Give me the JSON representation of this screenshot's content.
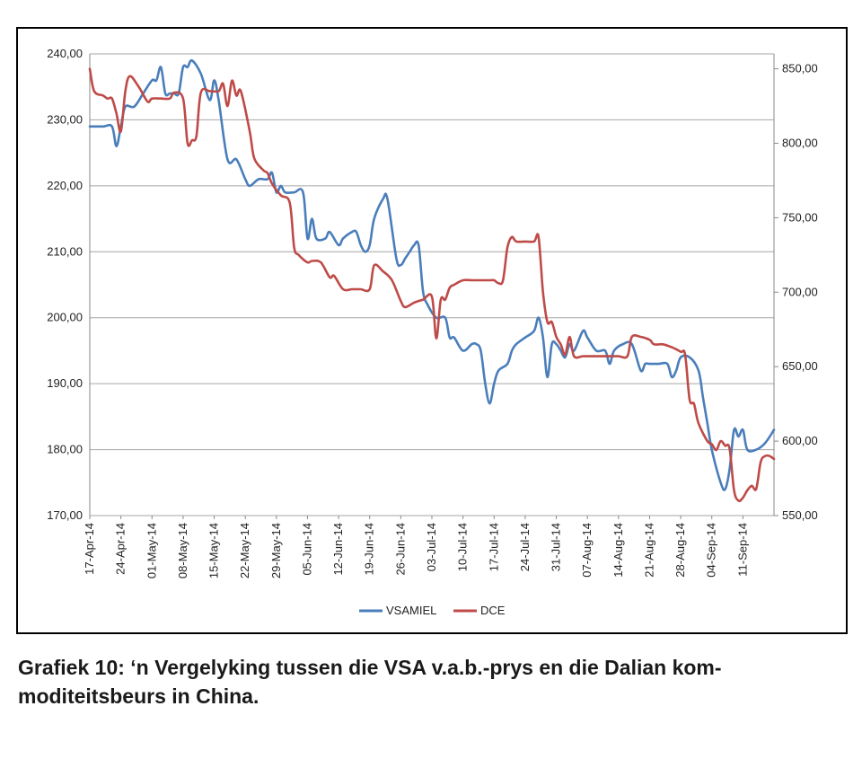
{
  "caption": "Grafiek 10: ‘n Vergelyking tussen die VSA v.a.b.-prys en die Dalian kom-moditeitsbeurs in China.",
  "chart_data": {
    "type": "line",
    "grid": "horizontal",
    "legend_position": "bottom",
    "x_tick_labels": [
      "17-Apr-14",
      "24-Apr-14",
      "01-May-14",
      "08-May-14",
      "15-May-14",
      "22-May-14",
      "29-May-14",
      "05-Jun-14",
      "12-Jun-14",
      "19-Jun-14",
      "26-Jun-14",
      "03-Jul-14",
      "10-Jul-14",
      "17-Jul-14",
      "24-Jul-14",
      "31-Jul-14",
      "07-Aug-14",
      "14-Aug-14",
      "21-Aug-14",
      "28-Aug-14",
      "04-Sep-14",
      "11-Sep-14"
    ],
    "x_range": [
      "2014-04-17",
      "2014-09-18"
    ],
    "y_left": {
      "range": [
        170,
        240
      ],
      "ticks": [
        "170,00",
        "180,00",
        "190,00",
        "200,00",
        "210,00",
        "220,00",
        "230,00",
        "240,00"
      ]
    },
    "y_right": {
      "range": [
        550,
        860
      ],
      "ticks": [
        "550,00",
        "600,00",
        "650,00",
        "700,00",
        "750,00",
        "800,00",
        "850,00"
      ]
    },
    "series": [
      {
        "name": "VSAMIEL",
        "axis": "left",
        "color": "#4a7ebb",
        "points": [
          [
            "2014-04-17",
            229
          ],
          [
            "2014-04-20",
            229
          ],
          [
            "2014-04-22",
            229
          ],
          [
            "2014-04-23",
            226
          ],
          [
            "2014-04-24",
            229
          ],
          [
            "2014-04-25",
            232
          ],
          [
            "2014-04-27",
            232
          ],
          [
            "2014-04-29",
            234
          ],
          [
            "2014-05-01",
            236
          ],
          [
            "2014-05-02",
            236
          ],
          [
            "2014-05-03",
            238
          ],
          [
            "2014-05-04",
            234
          ],
          [
            "2014-05-05",
            234
          ],
          [
            "2014-05-06",
            234
          ],
          [
            "2014-05-07",
            234
          ],
          [
            "2014-05-08",
            238
          ],
          [
            "2014-05-09",
            238
          ],
          [
            "2014-05-10",
            239
          ],
          [
            "2014-05-12",
            237
          ],
          [
            "2014-05-14",
            233
          ],
          [
            "2014-05-15",
            236
          ],
          [
            "2014-05-16",
            233
          ],
          [
            "2014-05-18",
            224
          ],
          [
            "2014-05-20",
            224
          ],
          [
            "2014-05-22",
            221
          ],
          [
            "2014-05-23",
            220
          ],
          [
            "2014-05-25",
            221
          ],
          [
            "2014-05-27",
            221
          ],
          [
            "2014-05-28",
            222
          ],
          [
            "2014-05-29",
            219
          ],
          [
            "2014-05-30",
            220
          ],
          [
            "2014-05-31",
            219
          ],
          [
            "2014-06-02",
            219
          ],
          [
            "2014-06-04",
            219
          ],
          [
            "2014-06-05",
            212
          ],
          [
            "2014-06-06",
            215
          ],
          [
            "2014-06-07",
            212
          ],
          [
            "2014-06-09",
            212
          ],
          [
            "2014-06-10",
            213
          ],
          [
            "2014-06-12",
            211
          ],
          [
            "2014-06-13",
            212
          ],
          [
            "2014-06-15",
            213
          ],
          [
            "2014-06-16",
            213
          ],
          [
            "2014-06-17",
            211
          ],
          [
            "2014-06-18",
            210
          ],
          [
            "2014-06-19",
            211
          ],
          [
            "2014-06-20",
            215
          ],
          [
            "2014-06-22",
            218
          ],
          [
            "2014-06-23",
            218
          ],
          [
            "2014-06-25",
            209
          ],
          [
            "2014-06-26",
            208
          ],
          [
            "2014-06-27",
            209
          ],
          [
            "2014-06-28",
            210
          ],
          [
            "2014-06-29",
            211
          ],
          [
            "2014-06-30",
            211
          ],
          [
            "2014-07-01",
            204
          ],
          [
            "2014-07-02",
            202
          ],
          [
            "2014-07-04",
            200
          ],
          [
            "2014-07-06",
            200
          ],
          [
            "2014-07-07",
            197
          ],
          [
            "2014-07-08",
            197
          ],
          [
            "2014-07-10",
            195
          ],
          [
            "2014-07-12",
            196
          ],
          [
            "2014-07-13",
            196
          ],
          [
            "2014-07-14",
            195
          ],
          [
            "2014-07-15",
            190
          ],
          [
            "2014-07-16",
            187
          ],
          [
            "2014-07-17",
            190
          ],
          [
            "2014-07-18",
            192
          ],
          [
            "2014-07-20",
            193
          ],
          [
            "2014-07-21",
            195
          ],
          [
            "2014-07-22",
            196
          ],
          [
            "2014-07-24",
            197
          ],
          [
            "2014-07-26",
            198
          ],
          [
            "2014-07-27",
            200
          ],
          [
            "2014-07-28",
            197
          ],
          [
            "2014-07-29",
            191
          ],
          [
            "2014-07-30",
            196
          ],
          [
            "2014-07-31",
            196
          ],
          [
            "2014-08-01",
            195
          ],
          [
            "2014-08-02",
            194
          ],
          [
            "2014-08-03",
            196
          ],
          [
            "2014-08-04",
            195
          ],
          [
            "2014-08-06",
            198
          ],
          [
            "2014-08-07",
            197
          ],
          [
            "2014-08-09",
            195
          ],
          [
            "2014-08-11",
            195
          ],
          [
            "2014-08-12",
            193
          ],
          [
            "2014-08-13",
            195
          ],
          [
            "2014-08-15",
            196
          ],
          [
            "2014-08-17",
            196
          ],
          [
            "2014-08-19",
            192
          ],
          [
            "2014-08-20",
            193
          ],
          [
            "2014-08-21",
            193
          ],
          [
            "2014-08-23",
            193
          ],
          [
            "2014-08-25",
            193
          ],
          [
            "2014-08-26",
            191
          ],
          [
            "2014-08-27",
            192
          ],
          [
            "2014-08-28",
            194
          ],
          [
            "2014-08-30",
            194
          ],
          [
            "2014-09-01",
            192
          ],
          [
            "2014-09-02",
            188
          ],
          [
            "2014-09-03",
            184
          ],
          [
            "2014-09-04",
            180
          ],
          [
            "2014-09-06",
            175
          ],
          [
            "2014-09-07",
            174
          ],
          [
            "2014-09-08",
            177
          ],
          [
            "2014-09-09",
            183
          ],
          [
            "2014-09-10",
            182
          ],
          [
            "2014-09-11",
            183
          ],
          [
            "2014-09-12",
            180
          ],
          [
            "2014-09-14",
            180
          ],
          [
            "2014-09-16",
            181
          ],
          [
            "2014-09-18",
            183
          ]
        ]
      },
      {
        "name": "DCE",
        "axis": "right",
        "color": "#be4b48",
        "points": [
          [
            "2014-04-17",
            850
          ],
          [
            "2014-04-18",
            835
          ],
          [
            "2014-04-20",
            832
          ],
          [
            "2014-04-21",
            830
          ],
          [
            "2014-04-22",
            830
          ],
          [
            "2014-04-23",
            820
          ],
          [
            "2014-04-24",
            808
          ],
          [
            "2014-04-25",
            835
          ],
          [
            "2014-04-26",
            845
          ],
          [
            "2014-04-28",
            838
          ],
          [
            "2014-04-30",
            828
          ],
          [
            "2014-05-01",
            830
          ],
          [
            "2014-05-03",
            830
          ],
          [
            "2014-05-05",
            830
          ],
          [
            "2014-05-06",
            834
          ],
          [
            "2014-05-08",
            830
          ],
          [
            "2014-05-09",
            800
          ],
          [
            "2014-05-10",
            802
          ],
          [
            "2014-05-11",
            805
          ],
          [
            "2014-05-12",
            834
          ],
          [
            "2014-05-14",
            835
          ],
          [
            "2014-05-16",
            835
          ],
          [
            "2014-05-17",
            840
          ],
          [
            "2014-05-18",
            825
          ],
          [
            "2014-05-19",
            842
          ],
          [
            "2014-05-20",
            832
          ],
          [
            "2014-05-21",
            835
          ],
          [
            "2014-05-23",
            808
          ],
          [
            "2014-05-24",
            790
          ],
          [
            "2014-05-26",
            782
          ],
          [
            "2014-05-27",
            780
          ],
          [
            "2014-05-28",
            773
          ],
          [
            "2014-05-30",
            765
          ],
          [
            "2014-06-01",
            760
          ],
          [
            "2014-06-02",
            730
          ],
          [
            "2014-06-03",
            725
          ],
          [
            "2014-06-05",
            720
          ],
          [
            "2014-06-06",
            721
          ],
          [
            "2014-06-08",
            720
          ],
          [
            "2014-06-10",
            710
          ],
          [
            "2014-06-11",
            711
          ],
          [
            "2014-06-13",
            702
          ],
          [
            "2014-06-15",
            702
          ],
          [
            "2014-06-16",
            702
          ],
          [
            "2014-06-17",
            702
          ],
          [
            "2014-06-19",
            702
          ],
          [
            "2014-06-20",
            718
          ],
          [
            "2014-06-22",
            714
          ],
          [
            "2014-06-24",
            708
          ],
          [
            "2014-06-26",
            694
          ],
          [
            "2014-06-27",
            690
          ],
          [
            "2014-06-29",
            693
          ],
          [
            "2014-07-01",
            695
          ],
          [
            "2014-07-03",
            697
          ],
          [
            "2014-07-04",
            669
          ],
          [
            "2014-07-05",
            695
          ],
          [
            "2014-07-06",
            695
          ],
          [
            "2014-07-07",
            703
          ],
          [
            "2014-07-08",
            705
          ],
          [
            "2014-07-10",
            708
          ],
          [
            "2014-07-12",
            708
          ],
          [
            "2014-07-14",
            708
          ],
          [
            "2014-07-16",
            708
          ],
          [
            "2014-07-17",
            708
          ],
          [
            "2014-07-18",
            706
          ],
          [
            "2014-07-19",
            708
          ],
          [
            "2014-07-20",
            730
          ],
          [
            "2014-07-21",
            737
          ],
          [
            "2014-07-22",
            734
          ],
          [
            "2014-07-24",
            734
          ],
          [
            "2014-07-26",
            734
          ],
          [
            "2014-07-27",
            737
          ],
          [
            "2014-07-28",
            700
          ],
          [
            "2014-07-29",
            680
          ],
          [
            "2014-07-30",
            680
          ],
          [
            "2014-07-31",
            670
          ],
          [
            "2014-08-01",
            665
          ],
          [
            "2014-08-02",
            658
          ],
          [
            "2014-08-03",
            670
          ],
          [
            "2014-08-04",
            657
          ],
          [
            "2014-08-06",
            657
          ],
          [
            "2014-08-08",
            657
          ],
          [
            "2014-08-10",
            657
          ],
          [
            "2014-08-12",
            657
          ],
          [
            "2014-08-14",
            657
          ],
          [
            "2014-08-16",
            657
          ],
          [
            "2014-08-17",
            670
          ],
          [
            "2014-08-19",
            670
          ],
          [
            "2014-08-21",
            668
          ],
          [
            "2014-08-22",
            665
          ],
          [
            "2014-08-24",
            665
          ],
          [
            "2014-08-26",
            663
          ],
          [
            "2014-08-28",
            660
          ],
          [
            "2014-08-29",
            658
          ],
          [
            "2014-08-30",
            628
          ],
          [
            "2014-08-31",
            625
          ],
          [
            "2014-09-01",
            612
          ],
          [
            "2014-09-03",
            600
          ],
          [
            "2014-09-04",
            598
          ],
          [
            "2014-09-05",
            594
          ],
          [
            "2014-09-06",
            600
          ],
          [
            "2014-09-07",
            597
          ],
          [
            "2014-09-08",
            595
          ],
          [
            "2014-09-09",
            567
          ],
          [
            "2014-09-10",
            560
          ],
          [
            "2014-09-11",
            562
          ],
          [
            "2014-09-12",
            567
          ],
          [
            "2014-09-13",
            570
          ],
          [
            "2014-09-14",
            568
          ],
          [
            "2014-09-15",
            586
          ],
          [
            "2014-09-16",
            590
          ],
          [
            "2014-09-17",
            590
          ],
          [
            "2014-09-18",
            588
          ]
        ]
      }
    ]
  }
}
